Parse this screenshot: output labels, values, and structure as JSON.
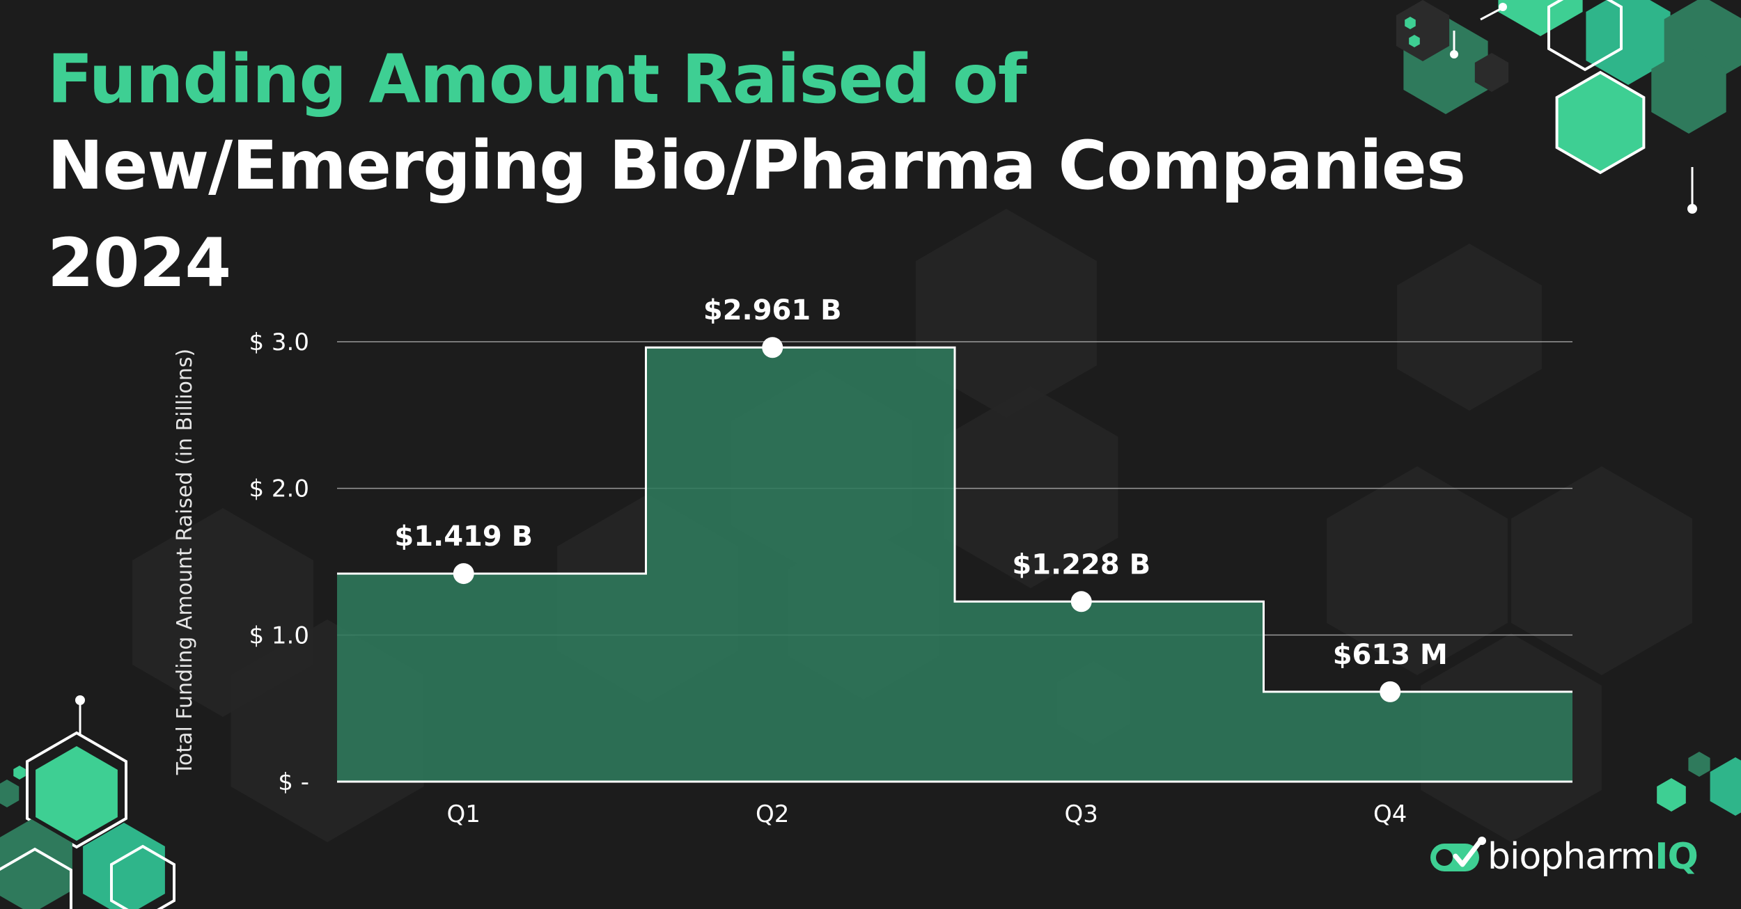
{
  "title": {
    "line1": "Funding Amount Raised of",
    "line2": "New/Emerging Bio/Pharma Companies",
    "line3": "2024"
  },
  "colors": {
    "accent": "#3ecf93",
    "area_fill": "#2f7a5c",
    "background": "#1c1c1c",
    "hex_dark": "#262626"
  },
  "chart_data": {
    "type": "area",
    "style": "step",
    "categories": [
      "Q1",
      "Q2",
      "Q3",
      "Q4"
    ],
    "values": [
      1.419,
      2.961,
      1.228,
      0.613
    ],
    "value_labels": [
      "$1.419 B",
      "$2.961 B",
      "$1.228 B",
      "$613 M"
    ],
    "ylabel": "Total Funding Amount Raised (in Billions)",
    "yticks": [
      0,
      1,
      2,
      3
    ],
    "ytick_labels": [
      "$ -",
      "$ 1.0",
      "$ 2.0",
      "$ 3.0"
    ],
    "ylim": [
      0,
      3
    ],
    "grid": true,
    "legend": "none"
  },
  "logo": {
    "name": "biopharm",
    "suffix": "IQ",
    "icon": "check-badge-icon"
  }
}
